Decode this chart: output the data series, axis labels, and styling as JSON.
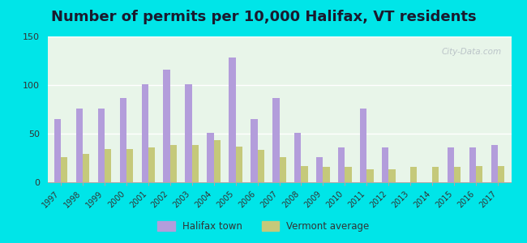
{
  "title": "Number of permits per 10,000 Halifax, VT residents",
  "years": [
    1997,
    1998,
    1999,
    2000,
    2001,
    2002,
    2003,
    2004,
    2005,
    2006,
    2007,
    2008,
    2009,
    2010,
    2011,
    2012,
    2013,
    2014,
    2015,
    2016,
    2017
  ],
  "halifax": [
    65,
    76,
    76,
    87,
    101,
    116,
    101,
    51,
    128,
    65,
    87,
    51,
    26,
    36,
    76,
    36,
    0,
    0,
    36,
    36,
    38
  ],
  "vermont": [
    26,
    29,
    34,
    34,
    36,
    38,
    38,
    43,
    37,
    33,
    26,
    17,
    16,
    16,
    13,
    13,
    16,
    16,
    16,
    17,
    17
  ],
  "halifax_color": "#b39ddb",
  "vermont_color": "#c5c97a",
  "bg_top": "#e8f5e9",
  "bg_bottom": "#f0faf0",
  "outer_background": "#00e5e8",
  "ylim": [
    0,
    150
  ],
  "yticks": [
    0,
    50,
    100,
    150
  ],
  "bar_width": 0.3,
  "title_fontsize": 13,
  "legend_halifax": "Halifax town",
  "legend_vermont": "Vermont average",
  "watermark": "City-Data.com"
}
